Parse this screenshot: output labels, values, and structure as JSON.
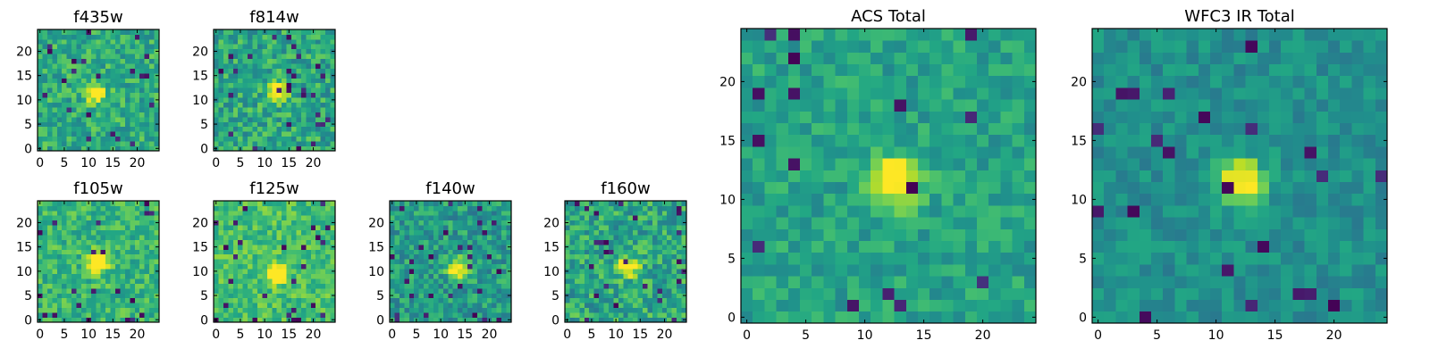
{
  "figure": {
    "title": ""
  },
  "chart_data": [
    {
      "id": "f435w",
      "type": "heatmap",
      "title": "f435w",
      "grid": false,
      "colormap": "viridis",
      "xlim": [
        0,
        24
      ],
      "ylim": [
        0,
        24
      ],
      "xticks": [
        "0",
        "5",
        "10",
        "15",
        "20"
      ],
      "yticks": [
        "0",
        "5",
        "10",
        "15",
        "20"
      ],
      "peak": {
        "x": 11.5,
        "y": 11.5,
        "relative_value": 1.0
      },
      "background_level": 0.62,
      "noise_level": 0.17
    },
    {
      "id": "f814w",
      "type": "heatmap",
      "title": "f814w",
      "grid": false,
      "colormap": "viridis",
      "xlim": [
        0,
        24
      ],
      "ylim": [
        0,
        24
      ],
      "xticks": [
        "0",
        "5",
        "10",
        "15",
        "20"
      ],
      "yticks": [
        "0",
        "5",
        "10",
        "15",
        "20"
      ],
      "peak": {
        "x": 12.5,
        "y": 11.5,
        "relative_value": 1.0
      },
      "background_level": 0.6,
      "noise_level": 0.18
    },
    {
      "id": "f105w",
      "type": "heatmap",
      "title": "f105w",
      "grid": false,
      "colormap": "viridis",
      "xlim": [
        0,
        24
      ],
      "ylim": [
        0,
        24
      ],
      "xticks": [
        "0",
        "5",
        "10",
        "15",
        "20"
      ],
      "yticks": [
        "0",
        "5",
        "10",
        "15",
        "20"
      ],
      "peak": {
        "x": 12,
        "y": 12,
        "relative_value": 1.0
      },
      "background_level": 0.66,
      "noise_level": 0.15
    },
    {
      "id": "f125w",
      "type": "heatmap",
      "title": "f125w",
      "grid": false,
      "colormap": "viridis",
      "xlim": [
        0,
        24
      ],
      "ylim": [
        0,
        24
      ],
      "xticks": [
        "0",
        "5",
        "10",
        "15",
        "20"
      ],
      "yticks": [
        "0",
        "5",
        "10",
        "15",
        "20"
      ],
      "peak": {
        "x": 12.5,
        "y": 9.5,
        "relative_value": 1.0
      },
      "background_level": 0.7,
      "noise_level": 0.14
    },
    {
      "id": "f140w",
      "type": "heatmap",
      "title": "f140w",
      "grid": false,
      "colormap": "viridis",
      "xlim": [
        0,
        24
      ],
      "ylim": [
        0,
        24
      ],
      "xticks": [
        "0",
        "5",
        "10",
        "15",
        "20"
      ],
      "yticks": [
        "0",
        "5",
        "10",
        "15",
        "20"
      ],
      "peak": {
        "x": 13.5,
        "y": 10.5,
        "relative_value": 1.0
      },
      "background_level": 0.55,
      "noise_level": 0.17
    },
    {
      "id": "f160w",
      "type": "heatmap",
      "title": "f160w",
      "grid": false,
      "colormap": "viridis",
      "xlim": [
        0,
        24
      ],
      "ylim": [
        0,
        24
      ],
      "xticks": [
        "0",
        "5",
        "10",
        "15",
        "20"
      ],
      "yticks": [
        "0",
        "5",
        "10",
        "15",
        "20"
      ],
      "peak": {
        "x": 12.5,
        "y": 11,
        "relative_value": 1.0
      },
      "background_level": 0.6,
      "noise_level": 0.19
    },
    {
      "id": "acs-total",
      "type": "heatmap",
      "title": "ACS Total",
      "grid": false,
      "colormap": "viridis",
      "xlim": [
        0,
        24
      ],
      "ylim": [
        0,
        24
      ],
      "xticks": [
        "0",
        "5",
        "10",
        "15",
        "20"
      ],
      "yticks": [
        "0",
        "5",
        "10",
        "15",
        "20"
      ],
      "peak": {
        "x": 12.5,
        "y": 11.5,
        "relative_value": 1.0
      },
      "background_level": 0.58,
      "noise_level": 0.12
    },
    {
      "id": "wfc3-ir-total",
      "type": "heatmap",
      "title": "WFC3 IR Total",
      "grid": false,
      "colormap": "viridis",
      "xlim": [
        0,
        24
      ],
      "ylim": [
        0,
        24
      ],
      "xticks": [
        "0",
        "5",
        "10",
        "15",
        "20"
      ],
      "yticks": [
        "0",
        "5",
        "10",
        "15",
        "20"
      ],
      "peak": {
        "x": 12,
        "y": 11.5,
        "relative_value": 1.0
      },
      "background_level": 0.5,
      "noise_level": 0.1
    }
  ]
}
